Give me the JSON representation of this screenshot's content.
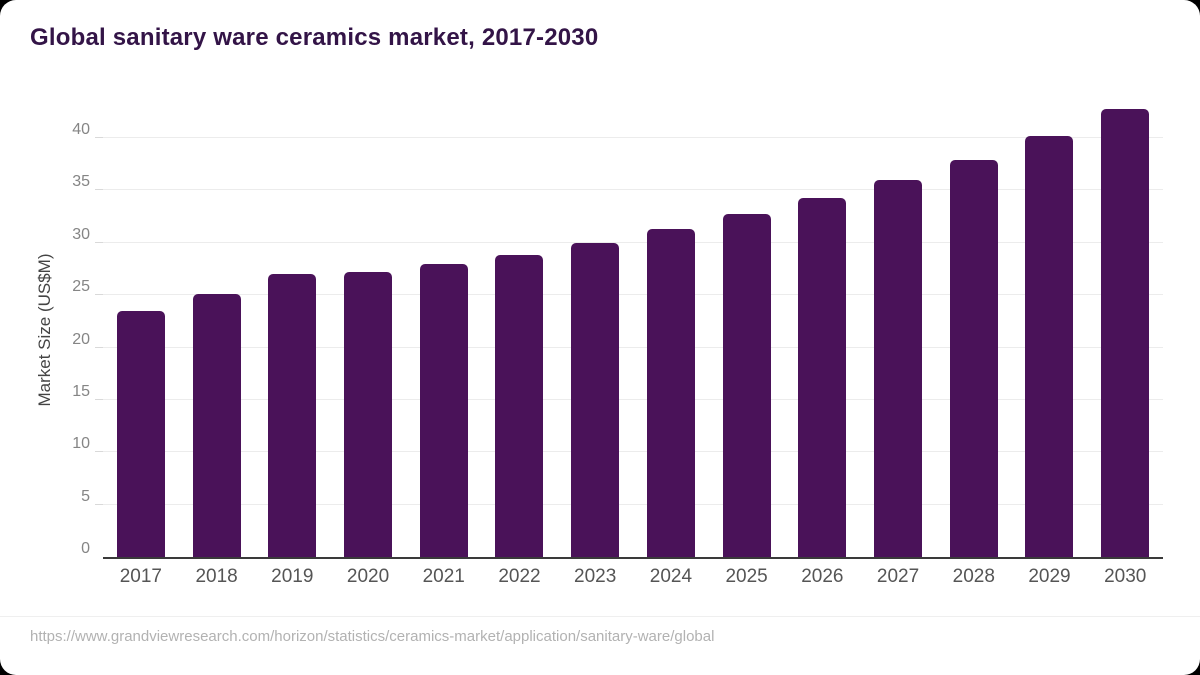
{
  "colors": {
    "title": "#331447",
    "bar": "#4a1259",
    "axis_line": "#3a3a3a",
    "gridline": "#ececec",
    "ytick_text": "#858585",
    "xtick_text": "#555555",
    "ylabel_text": "#444444",
    "source_text": "#b2b2b2",
    "background": "#ffffff"
  },
  "header": {
    "title": "Global sanitary ware ceramics market, 2017-2030"
  },
  "chart_data": {
    "type": "bar",
    "title": "Global sanitary ware ceramics market, 2017-2030",
    "xlabel": "",
    "ylabel": "Market Size (US$M)",
    "categories": [
      "2017",
      "2018",
      "2019",
      "2020",
      "2021",
      "2022",
      "2023",
      "2024",
      "2025",
      "2026",
      "2027",
      "2028",
      "2029",
      "2030"
    ],
    "values": [
      23.5,
      25.1,
      27.0,
      27.2,
      28.0,
      28.8,
      30.0,
      31.3,
      32.7,
      34.3,
      36.0,
      37.9,
      40.2,
      42.8
    ],
    "ylim": [
      0,
      40
    ],
    "yticks": [
      0,
      5,
      10,
      15,
      20,
      25,
      30,
      35,
      40
    ],
    "grid": "horizontal",
    "legend": "none",
    "bar_color": "#4a1259"
  },
  "footer": {
    "source_url": "https://www.grandviewresearch.com/horizon/statistics/ceramics-market/application/sanitary-ware/global"
  }
}
